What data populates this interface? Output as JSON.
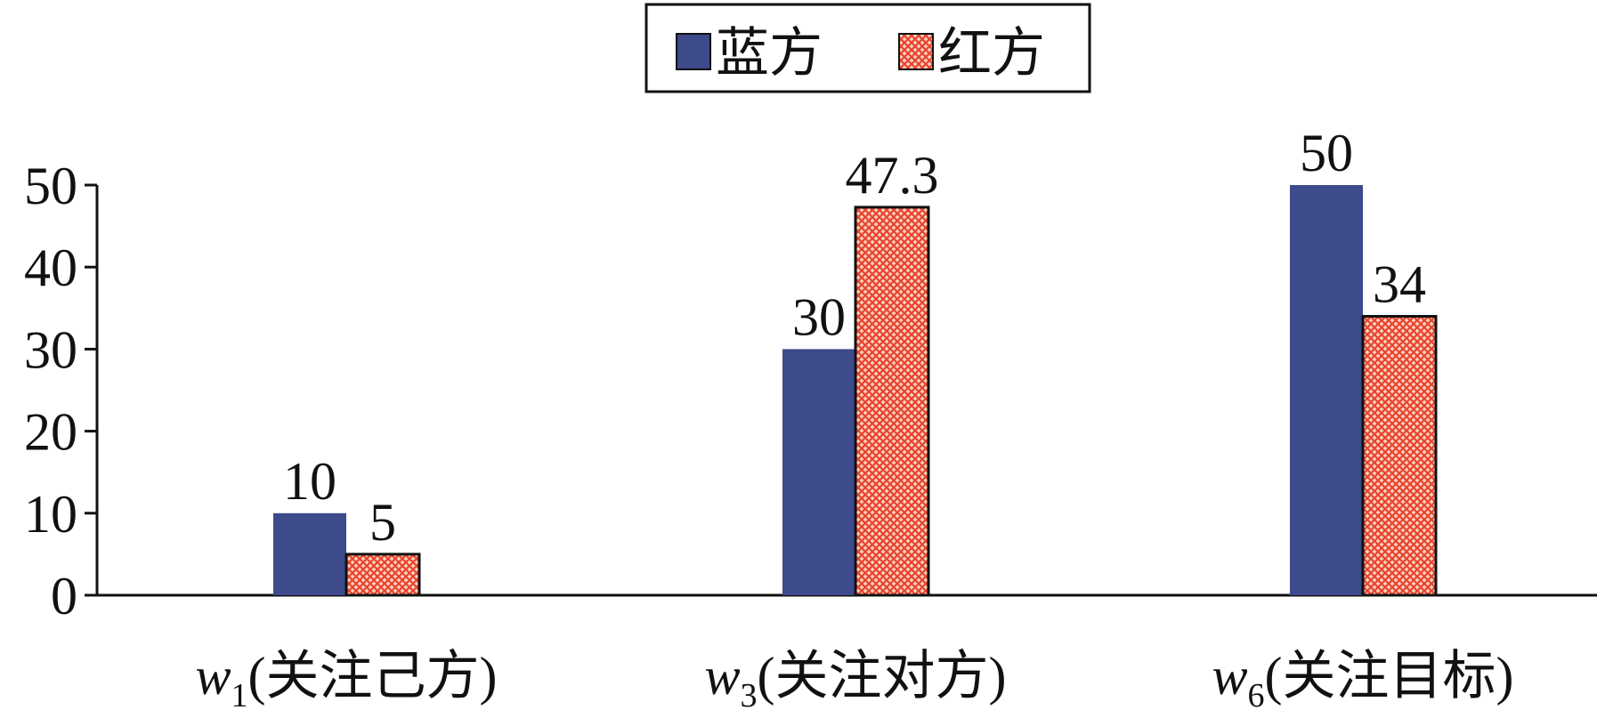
{
  "chart_data": {
    "type": "bar",
    "categories": [
      {
        "symbol": "w",
        "sub": "1",
        "label": "(关注己方)"
      },
      {
        "symbol": "w",
        "sub": "3",
        "label": "(关注对方)"
      },
      {
        "symbol": "w",
        "sub": "6",
        "label": "(关注目标)"
      }
    ],
    "series": [
      {
        "name": "蓝方",
        "color": "#3d4a8c",
        "hatch": false,
        "values": [
          10,
          30,
          50
        ]
      },
      {
        "name": "红方",
        "color": "#f26a50",
        "hatch": true,
        "values": [
          5,
          47.3,
          34
        ]
      }
    ],
    "ylim": [
      0,
      50
    ],
    "yticks": [
      0,
      10,
      20,
      30,
      40,
      50
    ],
    "grid": false,
    "legend": "top"
  }
}
